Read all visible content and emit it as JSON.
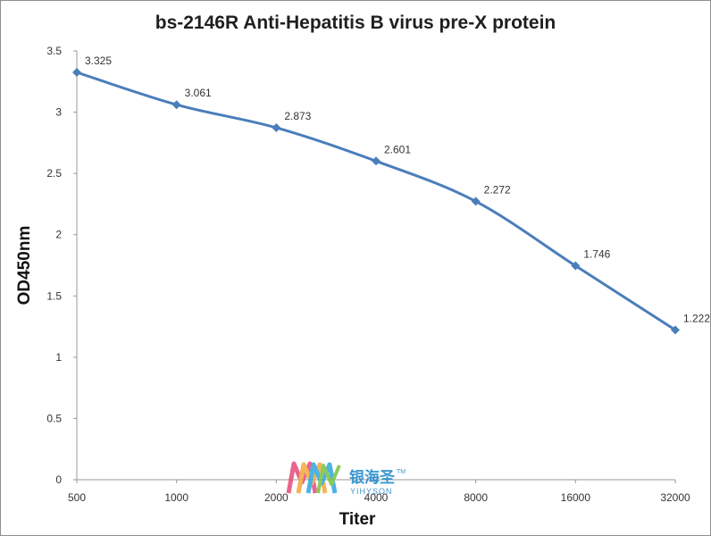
{
  "chart_data": {
    "type": "line",
    "title": "bs-2146R Anti-Hepatitis B virus pre-X protein",
    "xlabel": "Titer",
    "ylabel": "OD450nm",
    "categories": [
      "500",
      "1000",
      "2000",
      "4000",
      "8000",
      "16000",
      "32000"
    ],
    "series": [
      {
        "values": [
          3.325,
          3.061,
          2.873,
          2.601,
          2.272,
          1.746,
          1.222
        ]
      }
    ],
    "data_labels": [
      "3.325",
      "3.061",
      "2.873",
      "2.601",
      "2.272",
      "1.746",
      "1.222"
    ],
    "ylim": [
      0,
      3.5
    ],
    "yticks": [
      "0",
      "0.5",
      "1",
      "1.5",
      "2",
      "2.5",
      "3",
      "3.5"
    ],
    "grid": false,
    "line_color": "#4a7ebb"
  },
  "watermark": {
    "name_cn": "银海圣",
    "trademark": "TM",
    "name_en": "YIHYSON"
  }
}
